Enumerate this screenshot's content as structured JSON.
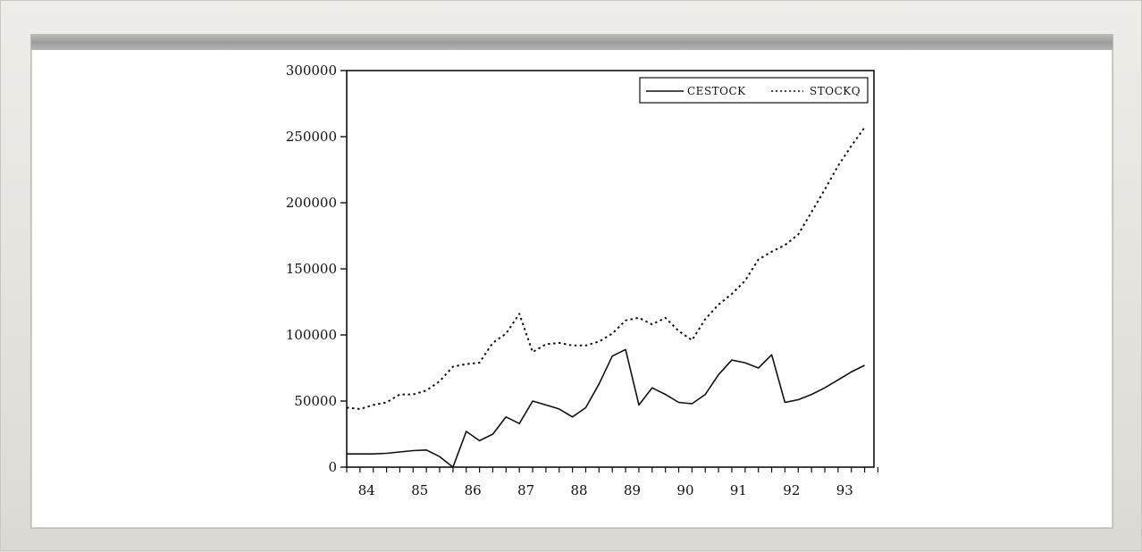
{
  "chart_data": {
    "type": "line",
    "x": [
      "84Q1",
      "84Q2",
      "84Q3",
      "84Q4",
      "85Q1",
      "85Q2",
      "85Q3",
      "85Q4",
      "86Q1",
      "86Q2",
      "86Q3",
      "86Q4",
      "87Q1",
      "87Q2",
      "87Q3",
      "87Q4",
      "88Q1",
      "88Q2",
      "88Q3",
      "88Q4",
      "89Q1",
      "89Q2",
      "89Q3",
      "89Q4",
      "90Q1",
      "90Q2",
      "90Q3",
      "90Q4",
      "91Q1",
      "91Q2",
      "91Q3",
      "91Q4",
      "92Q1",
      "92Q2",
      "92Q3",
      "92Q4",
      "93Q1",
      "93Q2",
      "93Q3",
      "93Q4"
    ],
    "series": [
      {
        "name": "CESTOCK",
        "style": "solid",
        "values": [
          10000,
          10000,
          10000,
          10500,
          11500,
          12500,
          13000,
          8000,
          0,
          27000,
          20000,
          25000,
          38000,
          33000,
          50000,
          47000,
          44000,
          38000,
          45000,
          63000,
          84000,
          89000,
          47000,
          60000,
          55000,
          49000,
          48000,
          55000,
          70000,
          81000,
          79000,
          75000,
          85000,
          49000,
          51000,
          55000,
          60000,
          66000,
          72000,
          77000
        ]
      },
      {
        "name": "STOCKQ",
        "style": "dotted",
        "values": [
          45000,
          44000,
          47000,
          49000,
          55000,
          55000,
          58000,
          65000,
          76000,
          78000,
          79000,
          94000,
          101000,
          116000,
          87000,
          93000,
          94000,
          92000,
          92000,
          95000,
          101000,
          111000,
          113000,
          108000,
          113000,
          103000,
          96000,
          112000,
          123000,
          131000,
          141000,
          157000,
          163000,
          168000,
          176000,
          193000,
          210000,
          228000,
          243000,
          257000
        ]
      }
    ],
    "ylim": [
      0,
      300000
    ],
    "xlim": [
      0,
      39.7
    ],
    "yticks": [
      "0",
      "50000",
      "100000",
      "150000",
      "200000",
      "250000",
      "300000"
    ],
    "ytick_values": [
      0,
      50000,
      100000,
      150000,
      200000,
      250000,
      300000
    ],
    "xticks": [
      "84",
      "85",
      "86",
      "87",
      "88",
      "89",
      "90",
      "91",
      "92",
      "93"
    ],
    "xtick_values": [
      1.5,
      5.5,
      9.5,
      13.5,
      17.5,
      21.5,
      25.5,
      29.5,
      33.5,
      37.5
    ],
    "legend_position": "top-right",
    "grid": false
  }
}
